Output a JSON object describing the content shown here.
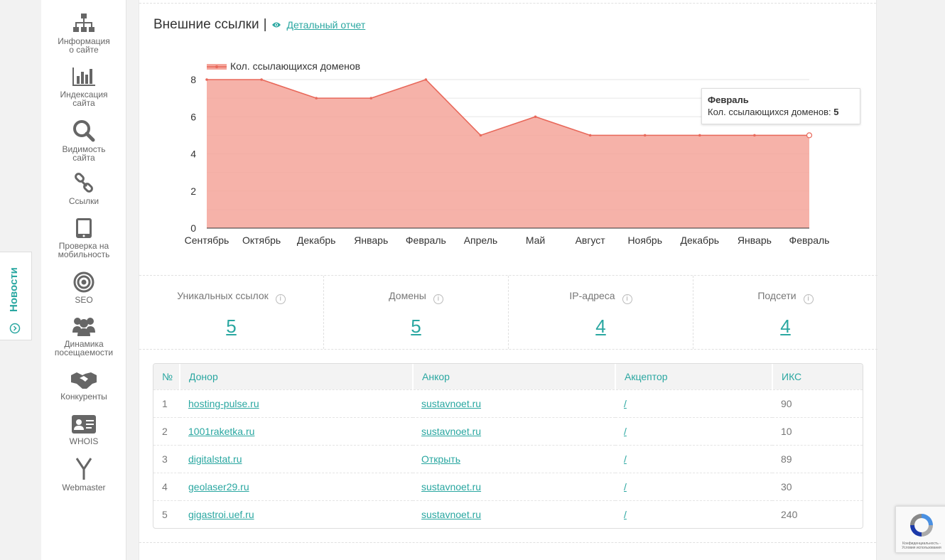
{
  "sidebar": {
    "items": [
      {
        "label": "Информация\nо сайте",
        "icon": "sitemap-icon"
      },
      {
        "label": "Индексация\nсайта",
        "icon": "bar-chart-icon"
      },
      {
        "label": "Видимость\nсайта",
        "icon": "search-icon"
      },
      {
        "label": "Ссылки",
        "icon": "link-icon"
      },
      {
        "label": "Проверка на\nмобильность",
        "icon": "tablet-icon"
      },
      {
        "label": "SEO",
        "icon": "target-icon"
      },
      {
        "label": "Динамика\nпосещаемости",
        "icon": "users-icon"
      },
      {
        "label": "Конкуренты",
        "icon": "handshake-icon"
      },
      {
        "label": "WHOIS",
        "icon": "id-card-icon"
      },
      {
        "label": "Webmaster",
        "icon": "yandex-icon"
      }
    ]
  },
  "news_tab": {
    "label": "Новости"
  },
  "section": {
    "title": "Внешние ссылки",
    "separator": "|",
    "detail_link": "Детальный отчет"
  },
  "chart_data": {
    "type": "area",
    "series": [
      {
        "name": "Кол. ссылающихся доменов",
        "values": [
          8,
          8,
          7,
          7,
          8,
          5,
          6,
          5,
          5,
          5,
          5,
          5
        ]
      }
    ],
    "categories": [
      "Сентябрь",
      "Октябрь",
      "Декабрь",
      "Январь",
      "Февраль",
      "Апрель",
      "Май",
      "Август",
      "Ноябрь",
      "Декабрь",
      "Январь",
      "Февраль"
    ],
    "ylim": [
      0,
      8
    ],
    "yticks": [
      0,
      2,
      4,
      6,
      8
    ],
    "grid": true,
    "legend": "top-left",
    "color": "#f4a49a",
    "line_color": "#e8685a"
  },
  "tooltip": {
    "title": "Февраль",
    "label": "Кол. ссылающихся доменов:",
    "value": "5"
  },
  "stats": [
    {
      "label": "Уникальных ссылок",
      "value": "5"
    },
    {
      "label": "Домены",
      "value": "5"
    },
    {
      "label": "IP-адреса",
      "value": "4"
    },
    {
      "label": "Подсети",
      "value": "4"
    }
  ],
  "table": {
    "headers": [
      "№",
      "Донор",
      "Анкор",
      "Акцептор",
      "ИКС"
    ],
    "rows": [
      {
        "n": "1",
        "donor": "hosting-pulse.ru",
        "anchor": "sustavnoet.ru",
        "acceptor": "/",
        "iks": "90"
      },
      {
        "n": "2",
        "donor": "1001raketka.ru",
        "anchor": "sustavnoet.ru",
        "acceptor": "/",
        "iks": "10"
      },
      {
        "n": "3",
        "donor": "digitalstat.ru",
        "anchor": "Открыть",
        "acceptor": "/",
        "iks": "89"
      },
      {
        "n": "4",
        "donor": "geolaser29.ru",
        "anchor": "sustavnoet.ru",
        "acceptor": "/",
        "iks": "30"
      },
      {
        "n": "5",
        "donor": "gigastroi.uef.ru",
        "anchor": "sustavnoet.ru",
        "acceptor": "/",
        "iks": "240"
      }
    ]
  },
  "recaptcha": {
    "text": "Конфиденциальность - Условия использования"
  },
  "colors": {
    "accent": "#2aa7a1",
    "chart_fill": "#f4a49a",
    "chart_line": "#e8685a"
  }
}
